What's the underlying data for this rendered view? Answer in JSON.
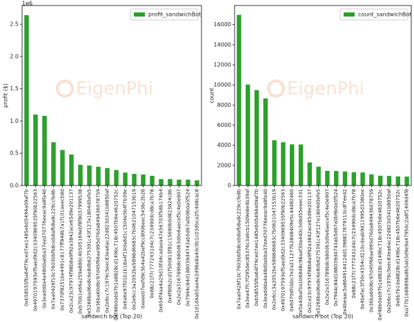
{
  "chart_data": [
    {
      "type": "bar",
      "ylabel": "profit ($)",
      "xlabel": "sandwich bot (Top 20)",
      "offset_text": "1e6",
      "watermark": "EigenPhi",
      "legend": "upper right",
      "categories": [
        "0xb58555fba64f79ced7ee1485eb05494a09af7b",
        "0x4970197593ef5aed9d2c3340969535f90b22563",
        "0x3eaddda4a48d0abba37eed70776eeac9a8fa40",
        "0x7aa0426f10c7603bbfb8ceb8afb8a8c229ccfe8b",
        "0x7370f8251be4491c8177ff848b7a1f101aeecb8d",
        "0x2ca23c97974f98b8a9f92a3842ace65d9e201137",
        "0xb7bb1e66a259a880c4b505169ebf8f8037999538",
        "0x5268bad6e8c6e8db6275391c43f127e1804d0efe5",
        "0x36ba60d6c97d45f66ae995d76da849436078759",
        "0x2e6cc7c1976c5eec83ea6ac22d823d341b8850af",
        "0xf48b0ab97b1a8828cd149bc718c4507b6e4620752c",
        "0x6a6e97fd1b1b18a4f10da8d1c1504e5b4f7b39e",
        "0x2e6cc3a2052be5898d6683c7b0621047153b19",
        "0xeee07eefd9c5b4a42bef9cc8006eec5436c2b28",
        "0x88c21f7c7772431d4c7c23490dcd8ca7b78",
        "0x654f4aa4a29d10fd4cadaea47e56703f58b174b4",
        "0x4f80b2cd1f500815f81c15690b0d823824c86",
        "0x2e2a316789b8c680d63d0e6aecef5c4e0e907",
        "0x7944c84d188039d4743ab5d67a0b9b0a5f524",
        "0x1d1d4ab5aa4e2d96e8a4dc0b1c03dbca2fc4d8cac8"
      ],
      "series": [
        {
          "name": "profit_sandwichBot",
          "color": "#2ca02c",
          "values": [
            2.64,
            1.1,
            1.08,
            0.67,
            0.55,
            0.48,
            0.32,
            0.31,
            0.29,
            0.27,
            0.24,
            0.2,
            0.18,
            0.17,
            0.15,
            0.1,
            0.1,
            0.09,
            0.09,
            0.08
          ]
        }
      ],
      "ylim": [
        0,
        2.79
      ],
      "yticks": [
        {
          "value": 0,
          "label": "0.0"
        },
        0.5,
        {
          "value": 1,
          "label": "1.0"
        },
        1.5,
        {
          "value": 2,
          "label": "2.0"
        },
        2.5
      ]
    },
    {
      "type": "bar",
      "ylabel": "count",
      "xlabel": "sandwich bot (Top 20)",
      "watermark": "EigenPhi",
      "legend": "upper right",
      "categories": [
        "0x7aa0426f10c7603bbfb8ceb8afb8a8c229ccfe8b",
        "0x3ea47fc7f2950ec85376c3a6cb1509e8e4b39af",
        "0xb58555fba64f79ced7ee1485eb05494a09af7b",
        "0x3eaddda4a48d0abba37eed70776eeac9a8fa40",
        "0x2e6cc3a2052be5898d6683c7b0621047153b19",
        "0x4970197593ef5aed9d2c3340969535f90b22563",
        "0x6070dfcbbc7e2a211277b28d8409e5c44d82460",
        "0x5a4dbaf3a1b6848c98aaf30a440c3d6d55eaec331",
        "0x2ca23c97974f98b8a9f92a3842ace65d9e201137",
        "0x5268bad6e8c6e8db6275391c43f127e1804d0efe5",
        "0x2e2a316789b8c680d63d0e6aecef5c4e0e907",
        "0x7944c84d188039d4743ab5d67a0b9b0a5f524",
        "0x4beaac5a864914412dd1398817679113cdf7ee42",
        "0x88c21f7c7772431d4c7c23490dcd8ca7b78",
        "0x4befac3f30c4354cd210cdaab9d11995d3380ee",
        "0x36ba60d6c97d45f66ae995d76da849436078759",
        "0xf48b0ab97b1a8828cd149bc718c4507b6e4620752c",
        "0x2e6cc7c1976c5eec83ea6ac22d823d341b8850af",
        "0x6b7b1da8828cd149bc718c4507b6e4620752c",
        "0xa77b1b88898a8b5ab3d9e9a47950c2a8f1404d4f8"
      ],
      "series": [
        {
          "name": "count_sandwichBot",
          "color": "#2ca02c",
          "values": [
            16970,
            10040,
            9490,
            8660,
            4500,
            4300,
            4090,
            4080,
            2290,
            1870,
            1450,
            1440,
            1390,
            1320,
            1290,
            1110,
            970,
            950,
            900,
            880
          ]
        }
      ],
      "ylim": [
        0,
        17900
      ],
      "yticks": [
        0,
        2000,
        4000,
        6000,
        8000,
        10000,
        12000,
        14000,
        16000
      ]
    }
  ]
}
